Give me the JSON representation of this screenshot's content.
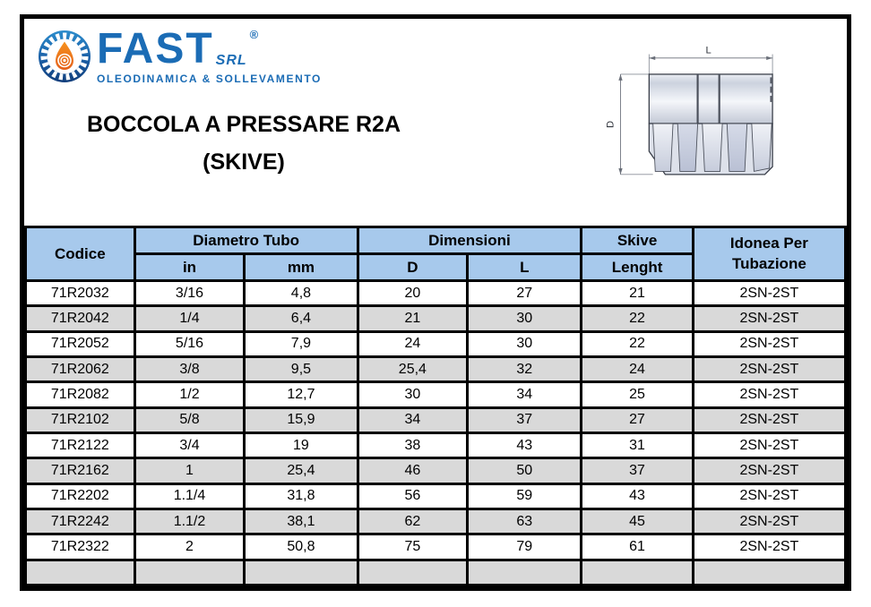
{
  "brand": {
    "name": "FAST",
    "suffix": "SRL",
    "registered": "®",
    "tagline": "OLEODINAMICA & SOLLEVAMENTO"
  },
  "title": {
    "line1": "BOCCOLA A PRESSARE R2A",
    "line2": "(SKIVE)"
  },
  "drawing": {
    "length_label": "L",
    "diameter_label": "D"
  },
  "table": {
    "headers": {
      "codice": "Codice",
      "diametro_tubo": "Diametro Tubo",
      "unit_in": "in",
      "unit_mm": "mm",
      "dimensioni": "Dimensioni",
      "dim_d": "D",
      "dim_l": "L",
      "skive": "Skive",
      "skive_sub": "Lenght",
      "idonea_line1": "Idonea Per",
      "idonea_line2": "Tubazione"
    },
    "rows": [
      [
        "71R2032",
        "3/16",
        "4,8",
        "20",
        "27",
        "21",
        "2SN-2ST"
      ],
      [
        "71R2042",
        "1/4",
        "6,4",
        "21",
        "30",
        "22",
        "2SN-2ST"
      ],
      [
        "71R2052",
        "5/16",
        "7,9",
        "24",
        "30",
        "22",
        "2SN-2ST"
      ],
      [
        "71R2062",
        "3/8",
        "9,5",
        "25,4",
        "32",
        "24",
        "2SN-2ST"
      ],
      [
        "71R2082",
        "1/2",
        "12,7",
        "30",
        "34",
        "25",
        "2SN-2ST"
      ],
      [
        "71R2102",
        "5/8",
        "15,9",
        "34",
        "37",
        "27",
        "2SN-2ST"
      ],
      [
        "71R2122",
        "3/4",
        "19",
        "38",
        "43",
        "31",
        "2SN-2ST"
      ],
      [
        "71R2162",
        "1",
        "25,4",
        "46",
        "50",
        "37",
        "2SN-2ST"
      ],
      [
        "71R2202",
        "1.1/4",
        "31,8",
        "56",
        "59",
        "43",
        "2SN-2ST"
      ],
      [
        "71R2242",
        "1.1/2",
        "38,1",
        "62",
        "63",
        "45",
        "2SN-2ST"
      ],
      [
        "71R2322",
        "2",
        "50,8",
        "75",
        "79",
        "61",
        "2SN-2ST"
      ],
      [
        "",
        "",
        "",
        "",
        "",
        "",
        ""
      ]
    ],
    "column_names": [
      "codice",
      "diametro-in",
      "diametro-mm",
      "dim-d",
      "dim-l",
      "skive-lenght",
      "idonea-tubazione"
    ]
  },
  "colors": {
    "header_bg": "#a7c9ec",
    "alt_row_bg": "#d9d9d9",
    "table_border": "#000000",
    "brand_blue": "#1b6cb5",
    "brand_orange": "#f0701f"
  }
}
